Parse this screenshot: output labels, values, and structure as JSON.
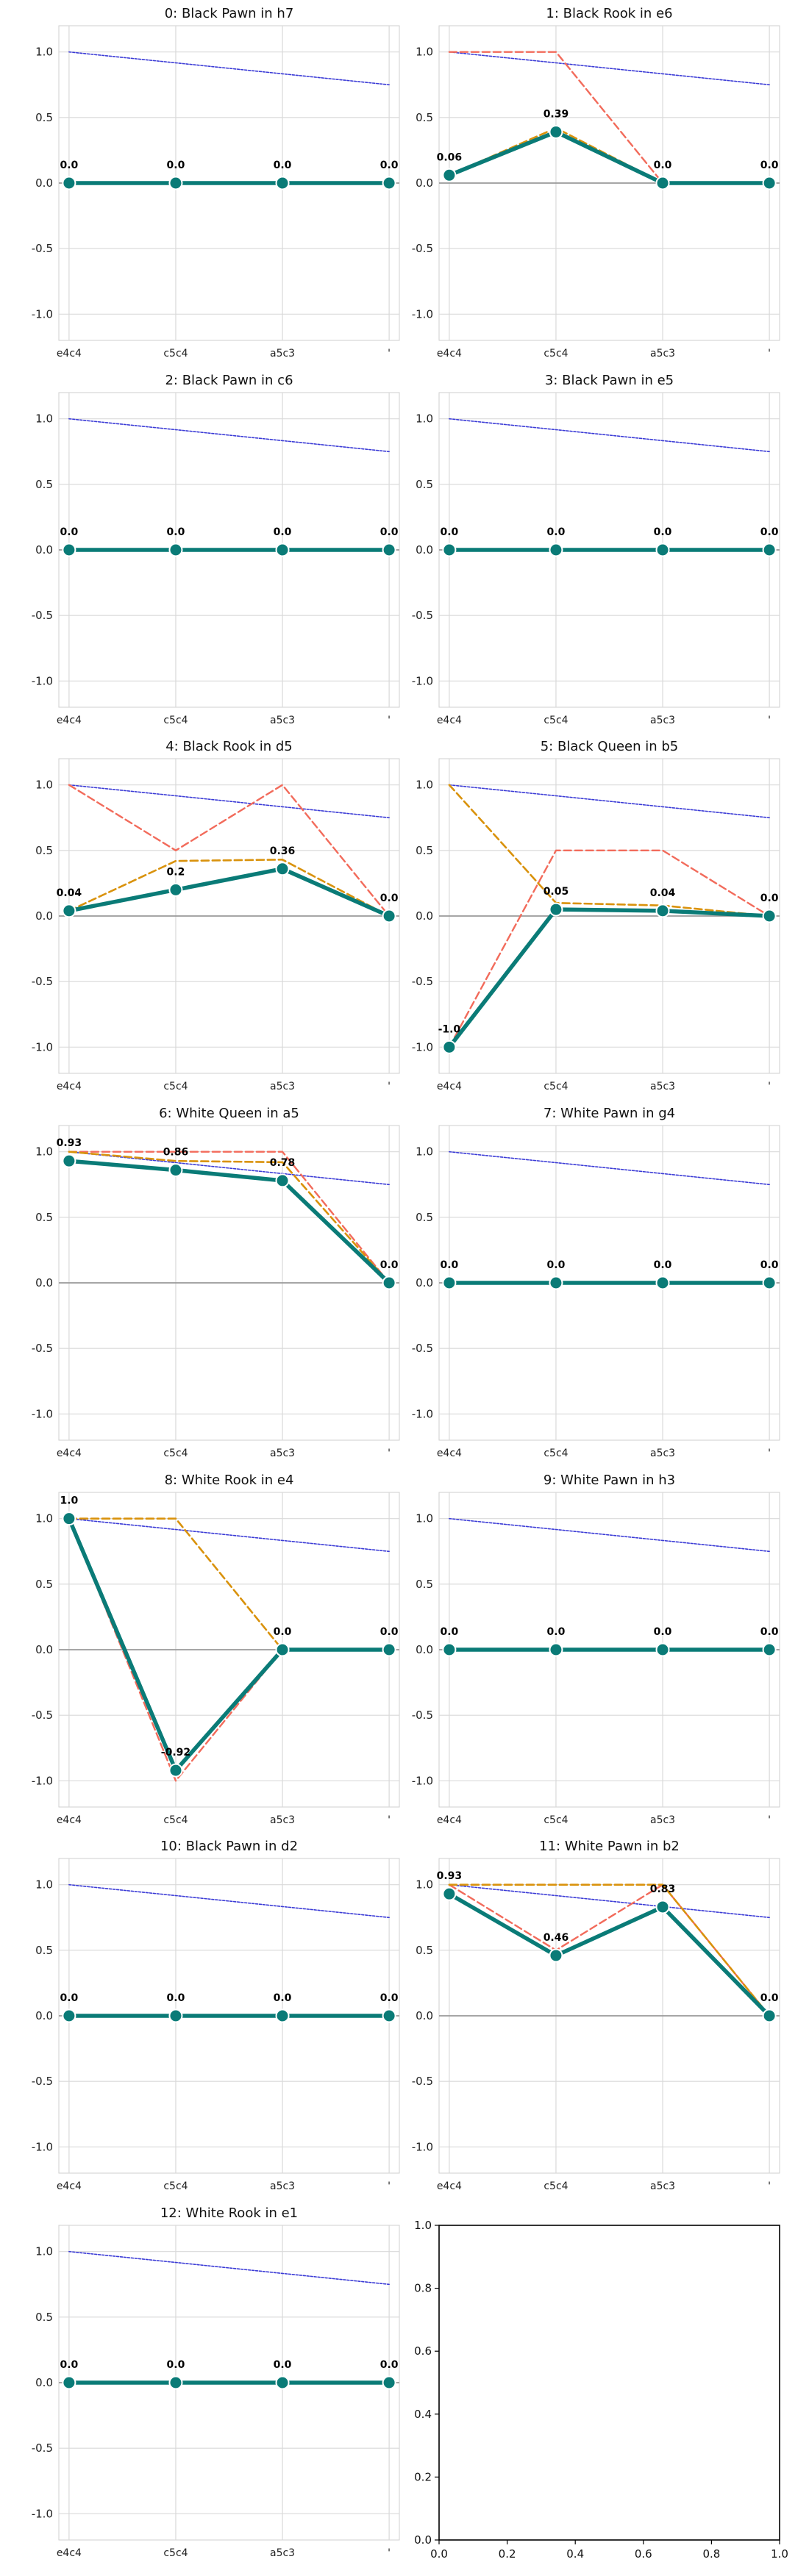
{
  "colors": {
    "main": "#0a7b77",
    "orange": "#d9920c",
    "red": "#f26b5b",
    "blue": "#3b3bd6",
    "grid": "#d9d9d9",
    "zero": "#9a9a9a"
  },
  "chart_data": [
    {
      "type": "line",
      "title": "0: Black Pawn in h7",
      "categories": [
        "e4c4",
        "c5c4",
        "a5c3",
        "'"
      ],
      "ylim": [
        -1.2,
        1.2
      ],
      "yticks": [
        "-1.0",
        "-0.5",
        "0.0",
        "0.5",
        "1.0"
      ],
      "grid": true,
      "series": [
        {
          "style": "main",
          "values": [
            0.0,
            0.0,
            0.0,
            0.0
          ]
        },
        {
          "style": "orange",
          "values": [
            0.0,
            0.0,
            0.0,
            0.0
          ]
        },
        {
          "style": "red",
          "values": [
            0.0,
            0.0,
            0.0,
            0.0
          ]
        },
        {
          "style": "blue",
          "values": [
            1.0,
            0.9167,
            0.8333,
            0.75
          ]
        }
      ],
      "data_labels": [
        "0.0",
        "0.0",
        "0.0",
        "0.0"
      ]
    },
    {
      "type": "line",
      "title": "1: Black Rook in e6",
      "categories": [
        "e4c4",
        "c5c4",
        "a5c3",
        "'"
      ],
      "ylim": [
        -1.2,
        1.2
      ],
      "yticks": [
        "-1.0",
        "-0.5",
        "0.0",
        "0.5",
        "1.0"
      ],
      "grid": true,
      "series": [
        {
          "style": "main",
          "values": [
            0.06,
            0.39,
            0.0,
            0.0
          ]
        },
        {
          "style": "orange",
          "values": [
            0.06,
            0.42,
            0.0,
            0.0
          ]
        },
        {
          "style": "red",
          "values": [
            1.0,
            1.0,
            0.0,
            0.0
          ]
        },
        {
          "style": "blue",
          "values": [
            1.0,
            0.9167,
            0.8333,
            0.75
          ]
        }
      ],
      "data_labels": [
        "0.06",
        "0.39",
        "0.0",
        "0.0"
      ]
    },
    {
      "type": "line",
      "title": "2: Black Pawn in c6",
      "categories": [
        "e4c4",
        "c5c4",
        "a5c3",
        "'"
      ],
      "ylim": [
        -1.2,
        1.2
      ],
      "yticks": [
        "-1.0",
        "-0.5",
        "0.0",
        "0.5",
        "1.0"
      ],
      "grid": true,
      "series": [
        {
          "style": "main",
          "values": [
            0.0,
            0.0,
            0.0,
            0.0
          ]
        },
        {
          "style": "orange",
          "values": [
            0.0,
            0.0,
            0.0,
            0.0
          ]
        },
        {
          "style": "red",
          "values": [
            0.0,
            0.0,
            0.0,
            0.0
          ]
        },
        {
          "style": "blue",
          "values": [
            1.0,
            0.9167,
            0.8333,
            0.75
          ]
        }
      ],
      "data_labels": [
        "0.0",
        "0.0",
        "0.0",
        "0.0"
      ]
    },
    {
      "type": "line",
      "title": "3: Black Pawn in e5",
      "categories": [
        "e4c4",
        "c5c4",
        "a5c3",
        "'"
      ],
      "ylim": [
        -1.2,
        1.2
      ],
      "yticks": [
        "-1.0",
        "-0.5",
        "0.0",
        "0.5",
        "1.0"
      ],
      "grid": true,
      "series": [
        {
          "style": "main",
          "values": [
            0.0,
            0.0,
            0.0,
            0.0
          ]
        },
        {
          "style": "orange",
          "values": [
            0.0,
            0.0,
            0.0,
            0.0
          ]
        },
        {
          "style": "red",
          "values": [
            0.0,
            0.0,
            0.0,
            0.0
          ]
        },
        {
          "style": "blue",
          "values": [
            1.0,
            0.9167,
            0.8333,
            0.75
          ]
        }
      ],
      "data_labels": [
        "0.0",
        "0.0",
        "0.0",
        "0.0"
      ]
    },
    {
      "type": "line",
      "title": "4: Black Rook in d5",
      "categories": [
        "e4c4",
        "c5c4",
        "a5c3",
        "'"
      ],
      "ylim": [
        -1.2,
        1.2
      ],
      "yticks": [
        "-1.0",
        "-0.5",
        "0.0",
        "0.5",
        "1.0"
      ],
      "grid": true,
      "series": [
        {
          "style": "main",
          "values": [
            0.04,
            0.2,
            0.36,
            0.0
          ]
        },
        {
          "style": "orange",
          "values": [
            0.04,
            0.42,
            0.43,
            0.0
          ]
        },
        {
          "style": "red",
          "values": [
            1.0,
            0.5,
            1.0,
            0.0
          ]
        },
        {
          "style": "blue",
          "values": [
            1.0,
            0.9167,
            0.8333,
            0.75
          ]
        }
      ],
      "data_labels": [
        "0.04",
        "0.2",
        "0.36",
        "0.0"
      ]
    },
    {
      "type": "line",
      "title": "5: Black Queen in b5",
      "categories": [
        "e4c4",
        "c5c4",
        "a5c3",
        "'"
      ],
      "ylim": [
        -1.2,
        1.2
      ],
      "yticks": [
        "-1.0",
        "-0.5",
        "0.0",
        "0.5",
        "1.0"
      ],
      "grid": true,
      "series": [
        {
          "style": "main",
          "values": [
            -1.0,
            0.05,
            0.04,
            0.0
          ]
        },
        {
          "style": "orange",
          "values": [
            1.0,
            0.1,
            0.08,
            0.0
          ]
        },
        {
          "style": "red",
          "values": [
            -1.0,
            0.5,
            0.5,
            0.0
          ]
        },
        {
          "style": "blue",
          "values": [
            1.0,
            0.9167,
            0.8333,
            0.75
          ]
        }
      ],
      "data_labels": [
        "-1.0",
        "0.05",
        "0.04",
        "0.0"
      ]
    },
    {
      "type": "line",
      "title": "6: White Queen in a5",
      "categories": [
        "e4c4",
        "c5c4",
        "a5c3",
        "'"
      ],
      "ylim": [
        -1.2,
        1.2
      ],
      "yticks": [
        "-1.0",
        "-0.5",
        "0.0",
        "0.5",
        "1.0"
      ],
      "grid": true,
      "series": [
        {
          "style": "main",
          "values": [
            0.93,
            0.86,
            0.78,
            0.0
          ]
        },
        {
          "style": "orange",
          "values": [
            1.0,
            0.93,
            0.92,
            0.0
          ]
        },
        {
          "style": "red",
          "values": [
            1.0,
            1.0,
            1.0,
            0.0
          ]
        },
        {
          "style": "blue",
          "values": [
            1.0,
            0.9167,
            0.8333,
            0.75
          ]
        }
      ],
      "data_labels": [
        "0.93",
        "0.86",
        "0.78",
        "0.0"
      ]
    },
    {
      "type": "line",
      "title": "7: White Pawn in g4",
      "categories": [
        "e4c4",
        "c5c4",
        "a5c3",
        "'"
      ],
      "ylim": [
        -1.2,
        1.2
      ],
      "yticks": [
        "-1.0",
        "-0.5",
        "0.0",
        "0.5",
        "1.0"
      ],
      "grid": true,
      "series": [
        {
          "style": "main",
          "values": [
            0.0,
            0.0,
            0.0,
            0.0
          ]
        },
        {
          "style": "orange",
          "values": [
            0.0,
            0.0,
            0.0,
            0.0
          ]
        },
        {
          "style": "red",
          "values": [
            0.0,
            0.0,
            0.0,
            0.0
          ]
        },
        {
          "style": "blue",
          "values": [
            1.0,
            0.9167,
            0.8333,
            0.75
          ]
        }
      ],
      "data_labels": [
        "0.0",
        "0.0",
        "0.0",
        "0.0"
      ]
    },
    {
      "type": "line",
      "title": "8: White Rook in e4",
      "categories": [
        "e4c4",
        "c5c4",
        "a5c3",
        "'"
      ],
      "ylim": [
        -1.2,
        1.2
      ],
      "yticks": [
        "-1.0",
        "-0.5",
        "0.0",
        "0.5",
        "1.0"
      ],
      "grid": true,
      "series": [
        {
          "style": "main",
          "values": [
            1.0,
            -0.92,
            0.0,
            0.0
          ]
        },
        {
          "style": "orange",
          "values": [
            1.0,
            1.0,
            0.0,
            0.0
          ]
        },
        {
          "style": "red",
          "values": [
            1.0,
            -1.0,
            0.0,
            0.0
          ]
        },
        {
          "style": "blue",
          "values": [
            1.0,
            0.9167,
            0.8333,
            0.75
          ]
        }
      ],
      "data_labels": [
        "1.0",
        "-0.92",
        "0.0",
        "0.0"
      ]
    },
    {
      "type": "line",
      "title": "9: White Pawn in h3",
      "categories": [
        "e4c4",
        "c5c4",
        "a5c3",
        "'"
      ],
      "ylim": [
        -1.2,
        1.2
      ],
      "yticks": [
        "-1.0",
        "-0.5",
        "0.0",
        "0.5",
        "1.0"
      ],
      "grid": true,
      "series": [
        {
          "style": "main",
          "values": [
            0.0,
            0.0,
            0.0,
            0.0
          ]
        },
        {
          "style": "orange",
          "values": [
            0.0,
            0.0,
            0.0,
            0.0
          ]
        },
        {
          "style": "red",
          "values": [
            0.0,
            0.0,
            0.0,
            0.0
          ]
        },
        {
          "style": "blue",
          "values": [
            1.0,
            0.9167,
            0.8333,
            0.75
          ]
        }
      ],
      "data_labels": [
        "0.0",
        "0.0",
        "0.0",
        "0.0"
      ]
    },
    {
      "type": "line",
      "title": "10: Black Pawn in d2",
      "categories": [
        "e4c4",
        "c5c4",
        "a5c3",
        "'"
      ],
      "ylim": [
        -1.2,
        1.2
      ],
      "yticks": [
        "-1.0",
        "-0.5",
        "0.0",
        "0.5",
        "1.0"
      ],
      "grid": true,
      "series": [
        {
          "style": "main",
          "values": [
            0.0,
            0.0,
            0.0,
            0.0
          ]
        },
        {
          "style": "orange",
          "values": [
            0.0,
            0.0,
            0.0,
            0.0
          ]
        },
        {
          "style": "red",
          "values": [
            0.0,
            0.0,
            0.0,
            0.0
          ]
        },
        {
          "style": "blue",
          "values": [
            1.0,
            0.9167,
            0.8333,
            0.75
          ]
        }
      ],
      "data_labels": [
        "0.0",
        "0.0",
        "0.0",
        "0.0"
      ]
    },
    {
      "type": "line",
      "title": "11: White Pawn in b2",
      "categories": [
        "e4c4",
        "c5c4",
        "a5c3",
        "'"
      ],
      "ylim": [
        -1.2,
        1.2
      ],
      "yticks": [
        "-1.0",
        "-0.5",
        "0.0",
        "0.5",
        "1.0"
      ],
      "grid": true,
      "series": [
        {
          "style": "main",
          "values": [
            0.93,
            0.46,
            0.83,
            0.0
          ]
        },
        {
          "style": "orange",
          "values": [
            1.0,
            1.0,
            1.0,
            0.0
          ]
        },
        {
          "style": "red",
          "values": [
            1.0,
            0.5,
            1.0,
            0.0
          ]
        },
        {
          "style": "blue",
          "values": [
            1.0,
            0.9167,
            0.8333,
            0.75
          ]
        }
      ],
      "data_labels": [
        "0.93",
        "0.46",
        "0.83",
        "0.0"
      ]
    },
    {
      "type": "line",
      "title": "12: White Rook in e1",
      "categories": [
        "e4c4",
        "c5c4",
        "a5c3",
        "'"
      ],
      "ylim": [
        -1.2,
        1.2
      ],
      "yticks": [
        "-1.0",
        "-0.5",
        "0.0",
        "0.5",
        "1.0"
      ],
      "grid": true,
      "series": [
        {
          "style": "main",
          "values": [
            0.0,
            0.0,
            0.0,
            0.0
          ]
        },
        {
          "style": "orange",
          "values": [
            0.0,
            0.0,
            0.0,
            0.0
          ]
        },
        {
          "style": "red",
          "values": [
            0.0,
            0.0,
            0.0,
            0.0
          ]
        },
        {
          "style": "blue",
          "values": [
            1.0,
            0.9167,
            0.8333,
            0.75
          ]
        }
      ],
      "data_labels": [
        "0.0",
        "0.0",
        "0.0",
        "0.0"
      ]
    },
    {
      "type": "empty",
      "title": "",
      "xlim": [
        0.0,
        1.0
      ],
      "ylim": [
        0.0,
        1.0
      ],
      "xticks": [
        "0.0",
        "0.2",
        "0.4",
        "0.6",
        "0.8",
        "1.0"
      ],
      "yticks": [
        "0.0",
        "0.2",
        "0.4",
        "0.6",
        "0.8",
        "1.0"
      ],
      "grid": false
    }
  ]
}
